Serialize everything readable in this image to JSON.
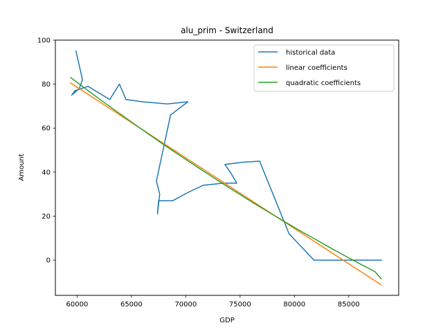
{
  "chart_data": {
    "type": "line",
    "title": "alu_prim - Switzerland",
    "xlabel": "GDP",
    "ylabel": "Amount",
    "xlim": [
      58000,
      89600
    ],
    "ylim": [
      -16,
      100
    ],
    "xticks": [
      60000,
      65000,
      70000,
      75000,
      80000,
      85000
    ],
    "yticks": [
      0,
      20,
      40,
      60,
      80,
      100
    ],
    "grid": false,
    "legend_position": "top-right",
    "series": [
      {
        "name": "historical data",
        "color": "#1f77b4",
        "points": [
          [
            59900,
            95
          ],
          [
            60500,
            82
          ],
          [
            60200,
            78
          ],
          [
            59500,
            75
          ],
          [
            59800,
            77
          ],
          [
            61000,
            79
          ],
          [
            63000,
            73
          ],
          [
            63900,
            80
          ],
          [
            64500,
            73
          ],
          [
            66000,
            72
          ],
          [
            68300,
            71
          ],
          [
            70200,
            72
          ],
          [
            68600,
            66
          ],
          [
            67300,
            36
          ],
          [
            67600,
            30
          ],
          [
            67400,
            21
          ],
          [
            67500,
            27
          ],
          [
            68800,
            27
          ],
          [
            70300,
            31
          ],
          [
            71600,
            34
          ],
          [
            73500,
            35
          ],
          [
            74700,
            35
          ],
          [
            74100,
            40
          ],
          [
            73600,
            43.5
          ],
          [
            75300,
            44.5
          ],
          [
            76800,
            45
          ],
          [
            79500,
            12
          ],
          [
            81800,
            0
          ],
          [
            82600,
            0
          ],
          [
            88000,
            0
          ]
        ]
      },
      {
        "name": "linear coefficients",
        "color": "#ff7f0e",
        "points": [
          [
            59400,
            80.5
          ],
          [
            88000,
            -11.3
          ]
        ]
      },
      {
        "name": "quadratic coefficients",
        "color": "#2ca02c",
        "points": [
          [
            59400,
            83
          ],
          [
            60800,
            77.8
          ],
          [
            62200,
            72.7
          ],
          [
            63600,
            67.7
          ],
          [
            65000,
            62.8
          ],
          [
            66400,
            57.9
          ],
          [
            67800,
            53.1
          ],
          [
            69200,
            48.4
          ],
          [
            70600,
            43.8
          ],
          [
            72000,
            39.3
          ],
          [
            73400,
            34.8
          ],
          [
            74800,
            30.4
          ],
          [
            76200,
            26.1
          ],
          [
            77600,
            21.9
          ],
          [
            79000,
            17.8
          ],
          [
            80400,
            13.7
          ],
          [
            81800,
            9.8
          ],
          [
            83200,
            5.9
          ],
          [
            84600,
            2.1
          ],
          [
            86000,
            -1.6
          ],
          [
            87400,
            -5.2
          ],
          [
            88000,
            -8.5
          ]
        ]
      }
    ]
  }
}
